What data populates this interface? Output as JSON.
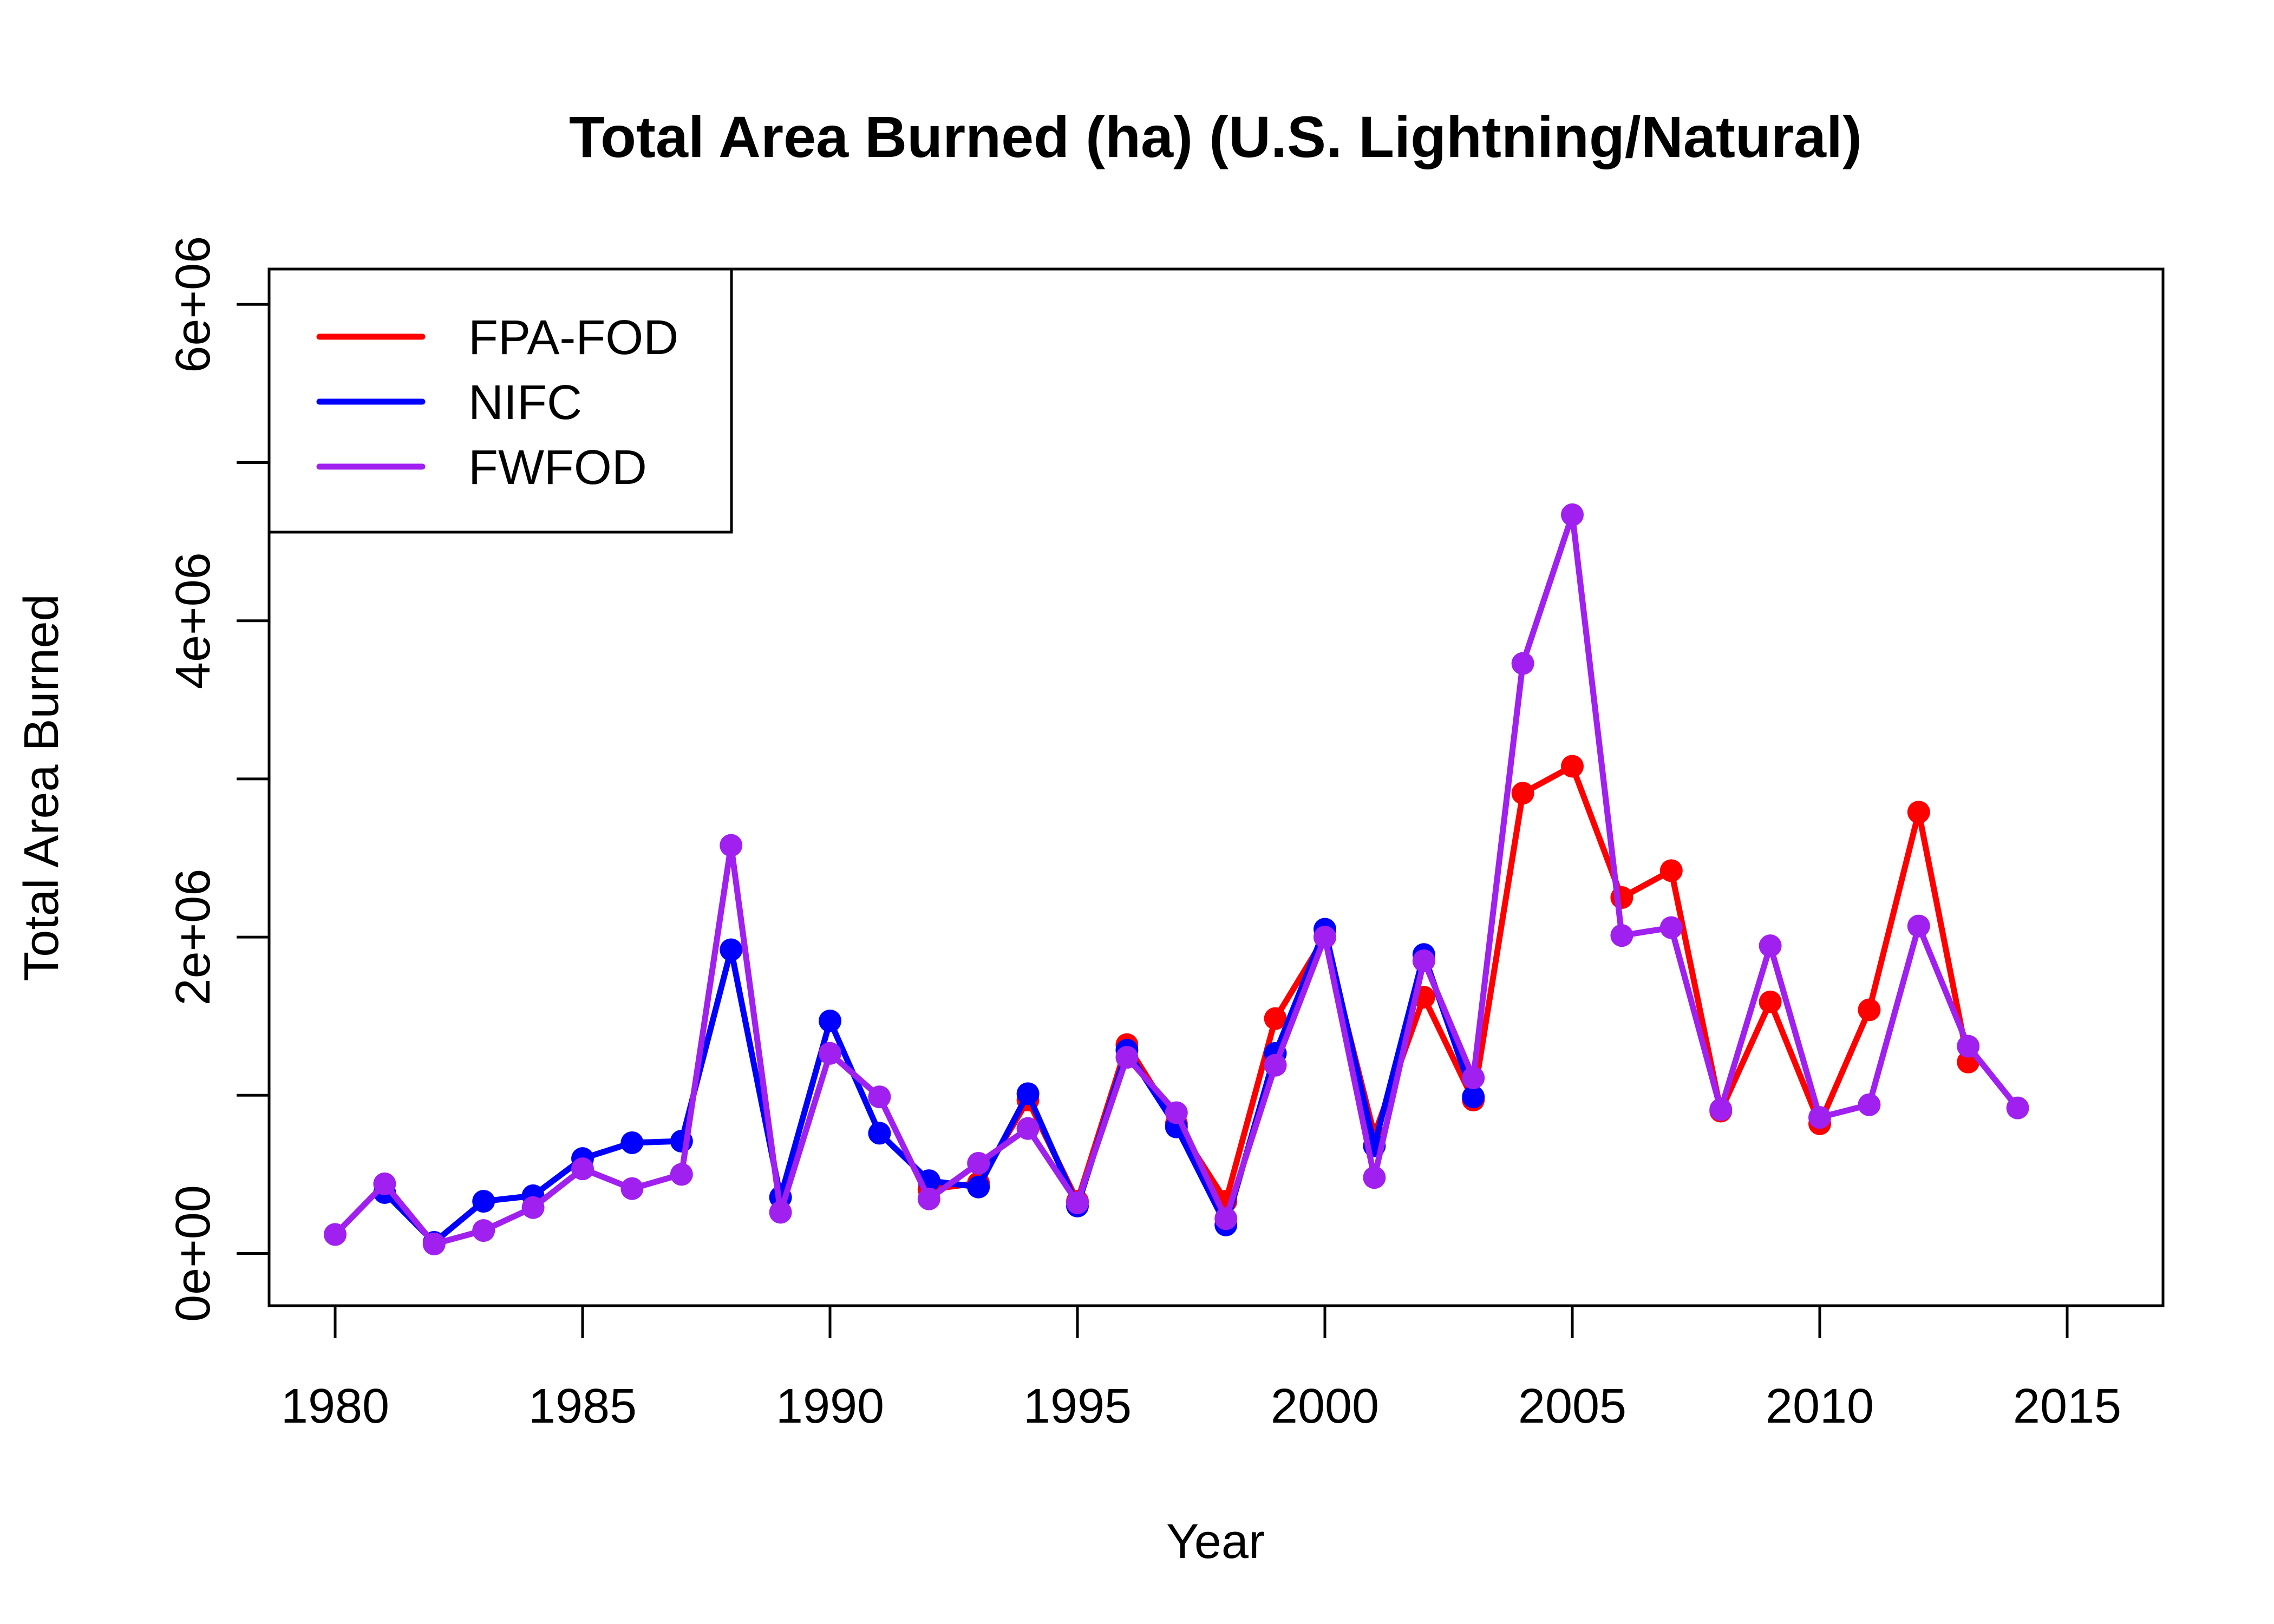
{
  "chart_data": {
    "type": "line",
    "title": "Total Area Burned (ha) (U.S. Lightning/Natural)",
    "xlabel": "Year",
    "ylabel": "Total Area Burned",
    "xlim": [
      1978.6,
      2016.9
    ],
    "ylim": [
      -230000,
      6250000
    ],
    "x_ticks": [
      1980,
      1985,
      1990,
      1995,
      2000,
      2005,
      2010,
      2015
    ],
    "x_tick_labels": [
      "1980",
      "1985",
      "1990",
      "1995",
      "2000",
      "2005",
      "2010",
      "2015"
    ],
    "y_ticks": [
      0,
      1000000,
      2000000,
      3000000,
      4000000,
      5000000,
      6000000
    ],
    "y_tick_labels": [
      "0e+00",
      "",
      "2e+06",
      "",
      "4e+06",
      "",
      "6e+06"
    ],
    "grid": false,
    "legend_position": "top-left",
    "series": [
      {
        "name": "FPA-FOD",
        "color": "#FF0000",
        "x": [
          1992,
          1993,
          1994,
          1995,
          1996,
          1997,
          1998,
          1999,
          2000,
          2001,
          2002,
          2003,
          2004,
          2005,
          2006,
          2007,
          2008,
          2009,
          2010,
          2011,
          2012,
          2013
        ],
        "values": [
          405000,
          445000,
          970000,
          330000,
          1320000,
          820000,
          330000,
          1485000,
          2000000,
          750000,
          1620000,
          970000,
          2910000,
          3080000,
          2250000,
          2420000,
          900000,
          1590000,
          820000,
          1540000,
          2790000,
          1210000
        ]
      },
      {
        "name": "NIFC",
        "color": "#0000FF",
        "x": [
          1981,
          1982,
          1983,
          1984,
          1985,
          1986,
          1987,
          1988,
          1989,
          1990,
          1991,
          1992,
          1993,
          1994,
          1995,
          1996,
          1997,
          1998,
          1999,
          2000,
          2001,
          2002,
          2003
        ],
        "values": [
          385000,
          70000,
          330000,
          365000,
          600000,
          700000,
          710000,
          1920000,
          355000,
          1470000,
          760000,
          460000,
          420000,
          1010000,
          300000,
          1285000,
          800000,
          180000,
          1265000,
          2050000,
          680000,
          1890000,
          990000
        ]
      },
      {
        "name": "FWFOD",
        "color": "#A020F0",
        "x": [
          1980,
          1981,
          1982,
          1983,
          1984,
          1985,
          1986,
          1987,
          1988,
          1989,
          1990,
          1991,
          1992,
          1993,
          1994,
          1995,
          1996,
          1997,
          1998,
          1999,
          2000,
          2001,
          2002,
          2003,
          2004,
          2005,
          2006,
          2007,
          2008,
          2009,
          2010,
          2011,
          2012,
          2013,
          2014
        ],
        "values": [
          120000,
          440000,
          60000,
          145000,
          290000,
          535000,
          410000,
          500000,
          2580000,
          260000,
          1265000,
          990000,
          345000,
          570000,
          790000,
          320000,
          1240000,
          890000,
          220000,
          1190000,
          2000000,
          480000,
          1850000,
          1110000,
          3730000,
          4670000,
          2010000,
          2060000,
          910000,
          1945000,
          860000,
          940000,
          2070000,
          1310000,
          920000
        ]
      }
    ]
  }
}
